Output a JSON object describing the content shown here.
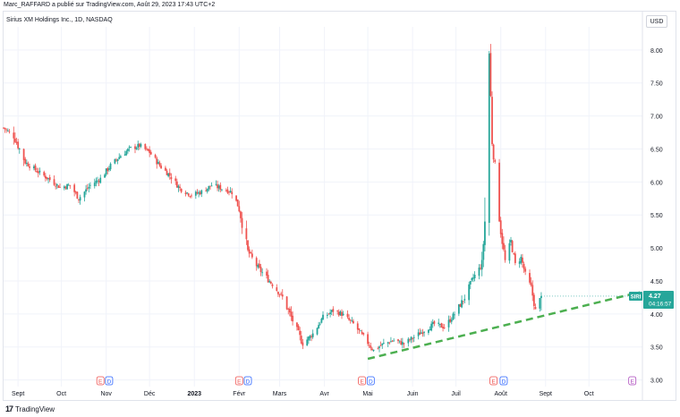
{
  "header": {
    "line": "Marc_RAFFARD a publié sur TradingView.com, Août 29, 2023 17:43 UTC+2"
  },
  "symbol_title": "Sirius XM Holdings Inc., 1D, NASDAQ",
  "currency": "USD",
  "footer": {
    "brand": "TradingView",
    "logo_icon": "tradingview-logo-icon"
  },
  "colors": {
    "up": "#26a69a",
    "down": "#ef5350",
    "trend": "#4caf50",
    "price_label": "#26a69a",
    "event_E": "#ef5350",
    "event_D": "#2962ff",
    "event_future": "#ab47bc"
  },
  "price_label": {
    "ticker": "SIRI",
    "price": "4.27",
    "countdown": "04:16:57"
  },
  "chart_data": {
    "type": "candlestick",
    "title": "Sirius XM Holdings Inc., 1D, NASDAQ",
    "ylim": [
      2.9,
      8.35
    ],
    "y_ticks": [
      "3.00",
      "3.50",
      "4.00",
      "4.50",
      "5.00",
      "5.50",
      "6.00",
      "6.50",
      "7.00",
      "7.50",
      "8.00"
    ],
    "x_range": [
      "2022-08-22",
      "2023-11-07"
    ],
    "x_ticks": [
      {
        "label": "Sept",
        "date": "2022-09-01"
      },
      {
        "label": "Oct",
        "date": "2022-10-01"
      },
      {
        "label": "Nov",
        "date": "2022-11-01"
      },
      {
        "label": "Déc",
        "date": "2022-12-01"
      },
      {
        "label": "2023",
        "date": "2023-01-01"
      },
      {
        "label": "Févr",
        "date": "2023-02-01"
      },
      {
        "label": "Mars",
        "date": "2023-03-01"
      },
      {
        "label": "Avr",
        "date": "2023-04-01"
      },
      {
        "label": "Mai",
        "date": "2023-05-01"
      },
      {
        "label": "Juin",
        "date": "2023-06-01"
      },
      {
        "label": "Juil",
        "date": "2023-07-01"
      },
      {
        "label": "Août",
        "date": "2023-08-01"
      },
      {
        "label": "Sept",
        "date": "2023-09-01"
      },
      {
        "label": "Oct",
        "date": "2023-10-01"
      }
    ],
    "series_anchors": [
      {
        "date": "2022-08-22",
        "close": 6.82
      },
      {
        "date": "2022-08-29",
        "close": 6.7
      },
      {
        "date": "2022-09-06",
        "close": 6.3
      },
      {
        "date": "2022-09-15",
        "close": 6.15
      },
      {
        "date": "2022-09-22",
        "close": 6.05
      },
      {
        "date": "2022-09-30",
        "close": 5.92
      },
      {
        "date": "2022-10-07",
        "close": 5.95
      },
      {
        "date": "2022-10-13",
        "close": 5.75
      },
      {
        "date": "2022-10-21",
        "close": 5.95
      },
      {
        "date": "2022-10-28",
        "close": 6.05
      },
      {
        "date": "2022-11-04",
        "close": 6.25
      },
      {
        "date": "2022-11-10",
        "close": 6.38
      },
      {
        "date": "2022-11-17",
        "close": 6.5
      },
      {
        "date": "2022-11-24",
        "close": 6.55
      },
      {
        "date": "2022-12-01",
        "close": 6.45
      },
      {
        "date": "2022-12-08",
        "close": 6.25
      },
      {
        "date": "2022-12-15",
        "close": 6.1
      },
      {
        "date": "2022-12-22",
        "close": 5.9
      },
      {
        "date": "2022-12-30",
        "close": 5.8
      },
      {
        "date": "2023-01-06",
        "close": 5.85
      },
      {
        "date": "2023-01-13",
        "close": 5.95
      },
      {
        "date": "2023-01-20",
        "close": 5.9
      },
      {
        "date": "2023-01-27",
        "close": 5.85
      },
      {
        "date": "2023-02-01",
        "close": 5.6
      },
      {
        "date": "2023-02-07",
        "close": 4.95
      },
      {
        "date": "2023-02-14",
        "close": 4.7
      },
      {
        "date": "2023-02-24",
        "close": 4.45
      },
      {
        "date": "2023-03-03",
        "close": 4.25
      },
      {
        "date": "2023-03-10",
        "close": 3.9
      },
      {
        "date": "2023-03-17",
        "close": 3.55
      },
      {
        "date": "2023-03-24",
        "close": 3.7
      },
      {
        "date": "2023-03-31",
        "close": 3.95
      },
      {
        "date": "2023-04-07",
        "close": 4.05
      },
      {
        "date": "2023-04-13",
        "close": 4.0
      },
      {
        "date": "2023-04-21",
        "close": 3.85
      },
      {
        "date": "2023-04-28",
        "close": 3.65
      },
      {
        "date": "2023-05-05",
        "close": 3.45
      },
      {
        "date": "2023-05-12",
        "close": 3.55
      },
      {
        "date": "2023-05-19",
        "close": 3.6
      },
      {
        "date": "2023-05-26",
        "close": 3.55
      },
      {
        "date": "2023-06-02",
        "close": 3.65
      },
      {
        "date": "2023-06-09",
        "close": 3.75
      },
      {
        "date": "2023-06-16",
        "close": 3.85
      },
      {
        "date": "2023-06-23",
        "close": 3.8
      },
      {
        "date": "2023-06-30",
        "close": 4.0
      },
      {
        "date": "2023-07-07",
        "close": 4.25
      },
      {
        "date": "2023-07-13",
        "close": 4.55
      },
      {
        "date": "2023-07-19",
        "close": 4.75
      },
      {
        "date": "2023-07-21",
        "close": 5.4
      },
      {
        "date": "2023-07-24",
        "close": 7.95
      },
      {
        "date": "2023-07-26",
        "close": 6.6
      },
      {
        "date": "2023-07-28",
        "close": 6.2
      },
      {
        "date": "2023-08-01",
        "close": 5.25
      },
      {
        "date": "2023-08-04",
        "close": 4.8
      },
      {
        "date": "2023-08-08",
        "close": 5.1
      },
      {
        "date": "2023-08-11",
        "close": 4.75
      },
      {
        "date": "2023-08-15",
        "close": 4.85
      },
      {
        "date": "2023-08-18",
        "close": 4.6
      },
      {
        "date": "2023-08-22",
        "close": 4.4
      },
      {
        "date": "2023-08-25",
        "close": 4.05
      },
      {
        "date": "2023-08-29",
        "close": 4.27
      }
    ],
    "trendline": [
      {
        "date": "2023-05-01",
        "value": 3.32
      },
      {
        "date": "2023-11-05",
        "value": 4.33
      }
    ],
    "events": [
      {
        "label": "E",
        "date": "2022-10-28",
        "kind": "E"
      },
      {
        "label": "D",
        "date": "2022-11-03",
        "kind": "D"
      },
      {
        "label": "E",
        "date": "2023-02-01",
        "kind": "E"
      },
      {
        "label": "D",
        "date": "2023-02-07",
        "kind": "D"
      },
      {
        "label": "E",
        "date": "2023-04-27",
        "kind": "E"
      },
      {
        "label": "D",
        "date": "2023-05-03",
        "kind": "D"
      },
      {
        "label": "E",
        "date": "2023-07-27",
        "kind": "E"
      },
      {
        "label": "D",
        "date": "2023-08-03",
        "kind": "D"
      },
      {
        "label": "E",
        "date": "2023-10-31",
        "kind": "future"
      }
    ]
  }
}
